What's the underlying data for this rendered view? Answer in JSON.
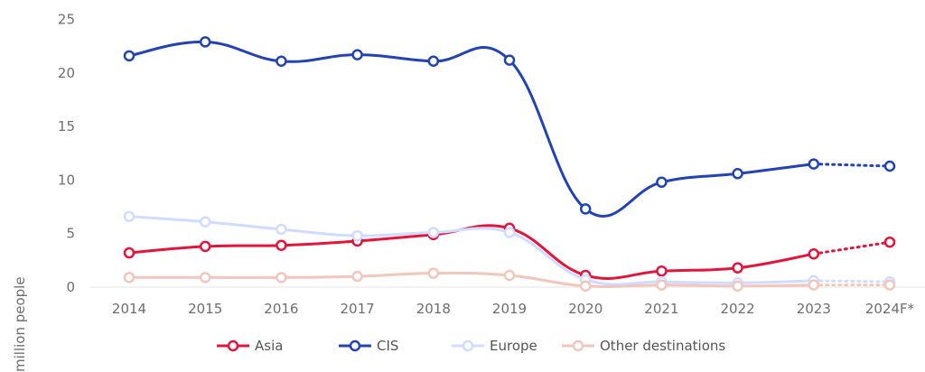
{
  "chart_data": {
    "type": "line",
    "ylabel": "million people",
    "ylim": [
      0,
      25
    ],
    "yticks": [
      0,
      5,
      10,
      15,
      20,
      25
    ],
    "categories": [
      "2014",
      "2015",
      "2016",
      "2017",
      "2018",
      "2019",
      "2020",
      "2021",
      "2022",
      "2023",
      "2024F*"
    ],
    "forecast_from_index": 9,
    "grid": false,
    "legend_position": "bottom",
    "series": [
      {
        "name": "Asia",
        "color": "#e4153b",
        "values": [
          3.2,
          3.8,
          3.9,
          4.3,
          4.9,
          5.5,
          1.1,
          1.5,
          1.8,
          3.1,
          4.2
        ]
      },
      {
        "name": "CIS",
        "color": "#2143b4",
        "values": [
          21.6,
          22.9,
          21.1,
          21.7,
          21.1,
          21.2,
          7.3,
          9.8,
          10.6,
          11.5,
          11.3
        ]
      },
      {
        "name": "Europe",
        "color": "#cfdcff",
        "values": [
          6.6,
          6.1,
          5.4,
          4.8,
          5.1,
          5.1,
          0.7,
          0.5,
          0.4,
          0.6,
          0.5
        ]
      },
      {
        "name": "Other destinations",
        "color": "#f1c6bd",
        "values": [
          0.9,
          0.9,
          0.9,
          1.0,
          1.3,
          1.1,
          0.1,
          0.2,
          0.1,
          0.2,
          0.2
        ]
      }
    ]
  }
}
